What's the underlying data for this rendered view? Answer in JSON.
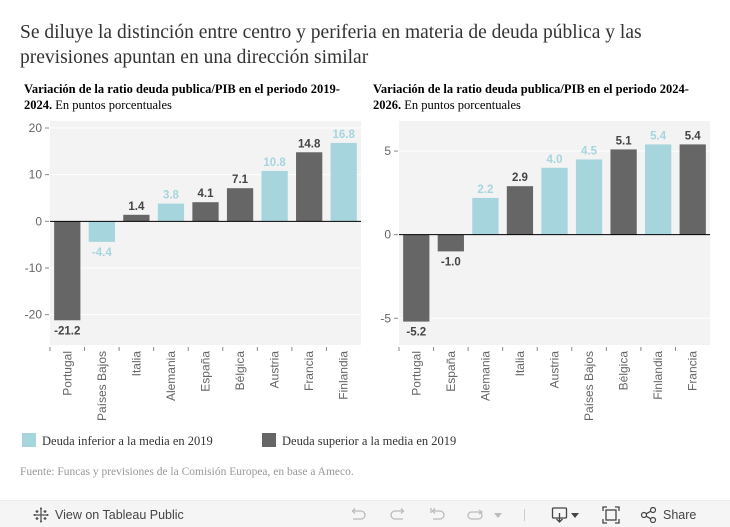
{
  "main_title": "Se diluye la distinción entre centro y periferia en materia de deuda pública y las previsiones apuntan en una dirección similar",
  "colors": {
    "below_average": "#a6d5de",
    "above_average": "#666666",
    "plot_background": "#f3f3f3",
    "gridline": "#ffffff",
    "zero_line": "#000000",
    "axis_text": "#666666"
  },
  "chart_data": [
    {
      "type": "bar",
      "title_bold": "Variación de la ratio deuda publica/PIB en el periodo 2019-2024.",
      "title_rest": " En puntos porcentuales",
      "xlabel": "",
      "ylabel": "",
      "ylim": [
        -26.5,
        21.5
      ],
      "yticks": [
        20,
        10,
        0,
        -10,
        -20
      ],
      "ytick_labels": [
        "20",
        "10",
        "0",
        "-10",
        "-20"
      ],
      "grid": true,
      "categories": [
        "Portugal",
        "Países Bajos",
        "Italia",
        "Alemania",
        "España",
        "Bélgica",
        "Austria",
        "Francia",
        "Finlandia"
      ],
      "values": [
        -21.2,
        -4.4,
        1.4,
        3.8,
        4.1,
        7.1,
        10.8,
        14.8,
        16.8
      ],
      "value_labels": [
        "-21.2",
        "-4.4",
        "1.4",
        "3.8",
        "4.1",
        "7.1",
        "10.8",
        "14.8",
        "16.8"
      ],
      "groups": [
        "above",
        "below",
        "above",
        "below",
        "above",
        "above",
        "below",
        "above",
        "below"
      ]
    },
    {
      "type": "bar",
      "title_bold": "Variación de la ratio deuda publica/PIB en el periodo 2024-2026.",
      "title_rest": " En puntos porcentuales",
      "xlabel": "",
      "ylabel": "",
      "ylim": [
        -6.6,
        6.8
      ],
      "yticks": [
        5,
        0,
        -5
      ],
      "ytick_labels": [
        "5",
        "0",
        "-5"
      ],
      "grid": true,
      "categories": [
        "Portugal",
        "España",
        "Alemania",
        "Italia",
        "Austria",
        "Países Bajos",
        "Bélgica",
        "Finlandia",
        "Francia"
      ],
      "values": [
        -5.2,
        -1.0,
        2.2,
        2.9,
        4.0,
        4.5,
        5.1,
        5.4,
        5.4
      ],
      "value_labels": [
        "-5.2",
        "-1.0",
        "2.2",
        "2.9",
        "4.0",
        "4.5",
        "5.1",
        "5.4",
        "5.4"
      ],
      "groups": [
        "above",
        "above",
        "below",
        "above",
        "below",
        "below",
        "above",
        "below",
        "above"
      ]
    }
  ],
  "legend": {
    "placement": "bottom-left",
    "items": [
      {
        "label": "Deuda inferior a la media en 2019",
        "group": "below"
      },
      {
        "label": "Deuda superior a la media en 2019",
        "group": "above"
      }
    ]
  },
  "source": "Fuente: Funcas y previsiones de la Comisión Europea, en base a Ameco.",
  "toolbar": {
    "view_on_tableau": "View on Tableau Public",
    "share": "Share",
    "icons": [
      "tableau-logo-icon",
      "undo-icon",
      "redo-icon",
      "revert-icon",
      "refresh-icon",
      "dropdown-caret-icon",
      "download-icon",
      "fullscreen-icon",
      "share-icon"
    ]
  }
}
